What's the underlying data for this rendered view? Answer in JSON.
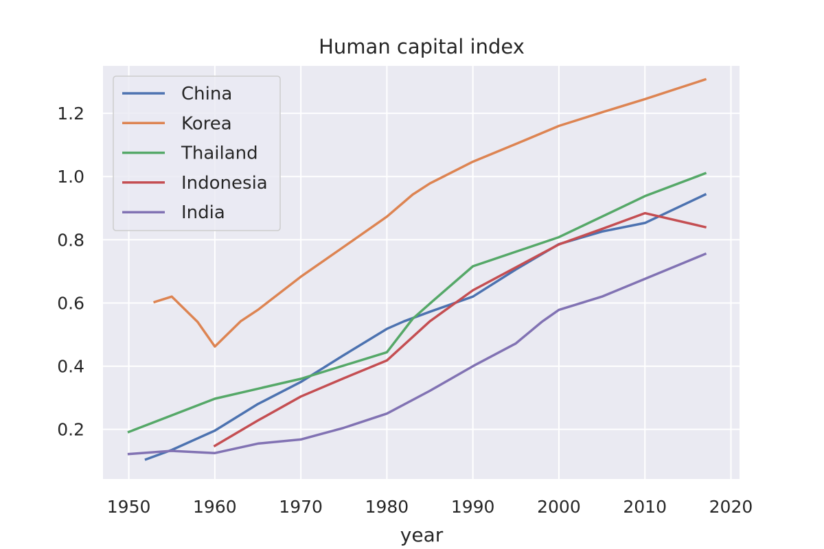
{
  "chart_data": {
    "type": "line",
    "title": "Human capital index",
    "xlabel": "year",
    "ylabel": "",
    "xlim": [
      1947,
      2021
    ],
    "ylim": [
      0.043,
      1.35
    ],
    "xticks": [
      1950,
      1960,
      1970,
      1980,
      1990,
      2000,
      2010,
      2020
    ],
    "yticks": [
      0.2,
      0.4,
      0.6,
      0.8,
      1.0,
      1.2
    ],
    "xtick_labels": [
      "1950",
      "1960",
      "1970",
      "1980",
      "1990",
      "2000",
      "2010",
      "2020"
    ],
    "ytick_labels": [
      "0.2",
      "0.4",
      "0.6",
      "0.8",
      "1.0",
      "1.2"
    ],
    "grid": true,
    "legend_position": "top-left",
    "series": [
      {
        "name": "China",
        "color": "#4c72b0",
        "x": [
          1952,
          1955,
          1960,
          1965,
          1970,
          1975,
          1980,
          1982,
          1985,
          1990,
          1995,
          2000,
          2005,
          2010,
          2017
        ],
        "y": [
          0.105,
          0.135,
          0.196,
          0.28,
          0.35,
          0.435,
          0.518,
          0.542,
          0.572,
          0.62,
          0.706,
          0.786,
          0.826,
          0.853,
          0.943
        ]
      },
      {
        "name": "Korea",
        "color": "#dd8452",
        "x": [
          1953,
          1955,
          1958,
          1960,
          1963,
          1965,
          1970,
          1975,
          1980,
          1983,
          1985,
          1990,
          1995,
          2000,
          2005,
          2010,
          2017
        ],
        "y": [
          0.603,
          0.62,
          0.54,
          0.462,
          0.542,
          0.578,
          0.683,
          0.778,
          0.873,
          0.943,
          0.978,
          1.047,
          1.103,
          1.16,
          1.203,
          1.245,
          1.307
        ]
      },
      {
        "name": "Thailand",
        "color": "#55a868",
        "x": [
          1950,
          1960,
          1970,
          1980,
          1983,
          1985,
          1990,
          2000,
          2010,
          2017
        ],
        "y": [
          0.192,
          0.297,
          0.36,
          0.444,
          0.55,
          0.598,
          0.716,
          0.808,
          0.938,
          1.01
        ]
      },
      {
        "name": "Indonesia",
        "color": "#c44e52",
        "x": [
          1960,
          1965,
          1970,
          1975,
          1980,
          1985,
          1990,
          2000,
          2005,
          2010,
          2017
        ],
        "y": [
          0.148,
          0.228,
          0.304,
          0.362,
          0.418,
          0.542,
          0.64,
          0.785,
          0.834,
          0.884,
          0.84
        ]
      },
      {
        "name": "India",
        "color": "#8172b3",
        "x": [
          1950,
          1955,
          1960,
          1965,
          1970,
          1975,
          1980,
          1985,
          1990,
          1995,
          1998,
          2000,
          2005,
          2010,
          2017
        ],
        "y": [
          0.122,
          0.132,
          0.125,
          0.155,
          0.168,
          0.205,
          0.25,
          0.322,
          0.4,
          0.472,
          0.54,
          0.578,
          0.62,
          0.676,
          0.755
        ]
      }
    ]
  }
}
